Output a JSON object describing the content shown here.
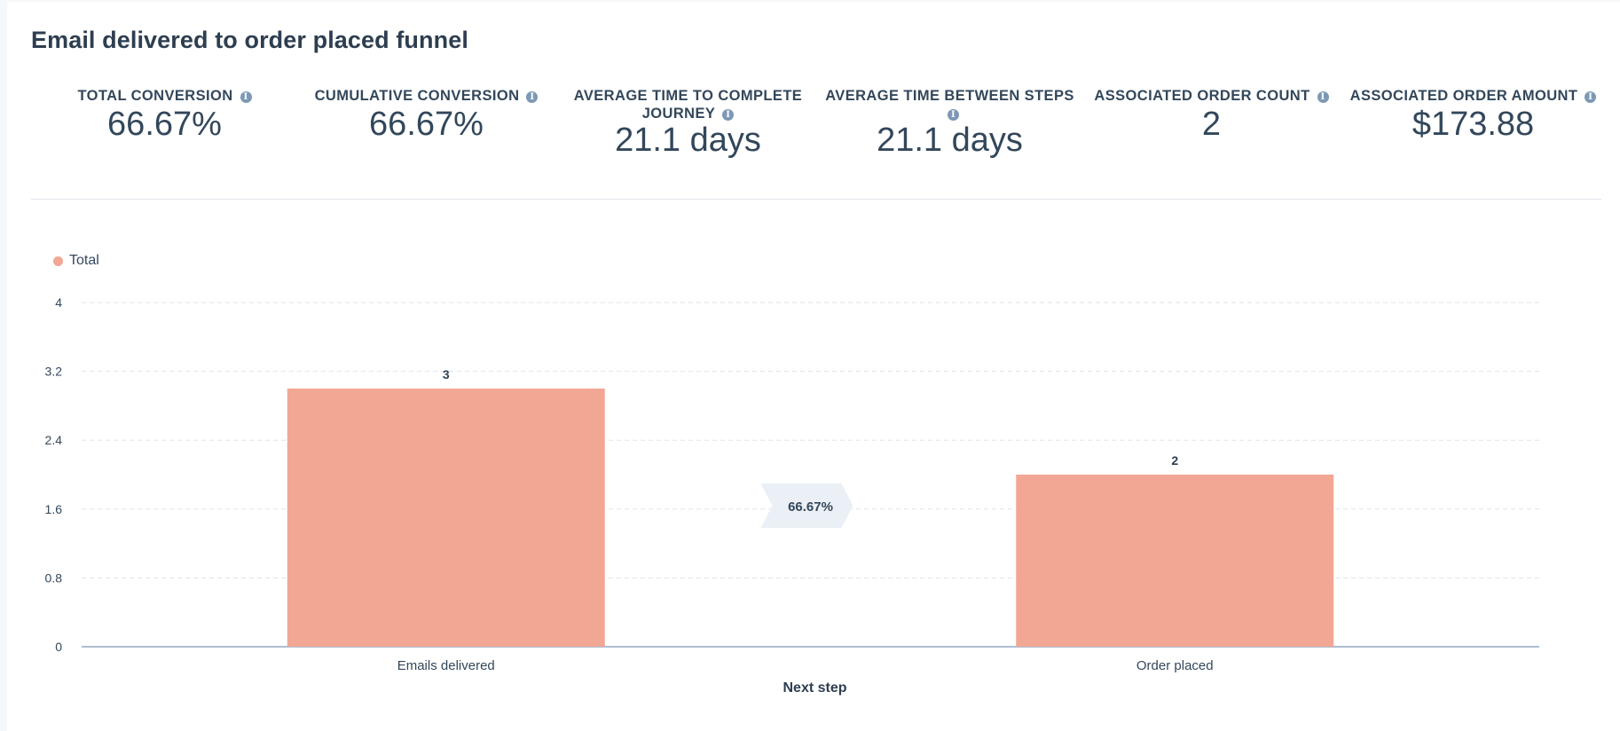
{
  "report": {
    "title": "Email delivered to order placed funnel"
  },
  "kpis": [
    {
      "label": "TOTAL CONVERSION",
      "value": "66.67%"
    },
    {
      "label": "CUMULATIVE CONVERSION",
      "value": "66.67%"
    },
    {
      "label": "AVERAGE TIME TO COMPLETE JOURNEY",
      "value": "21.1 days"
    },
    {
      "label": "AVERAGE TIME BETWEEN STEPS",
      "value": "21.1 days"
    },
    {
      "label": "ASSOCIATED ORDER COUNT",
      "value": "2"
    },
    {
      "label": "ASSOCIATED ORDER AMOUNT",
      "value": "$173.88"
    }
  ],
  "info_icon": "info-circle-icon",
  "colors": {
    "bar": "#f2a794",
    "axis": "#7c98b6",
    "grid": "#dfe3eb",
    "text": "#33475b",
    "conversion_tag": "#eaf0f6"
  },
  "chart_data": {
    "type": "bar",
    "title": "",
    "legend": [
      "Total"
    ],
    "categories": [
      "Emails delivered",
      "Order placed"
    ],
    "series": [
      {
        "name": "Total",
        "values": [
          3,
          2
        ]
      }
    ],
    "data_labels": [
      "3",
      "2"
    ],
    "xlabel": "Next step",
    "ylabel": "",
    "ylim": [
      0,
      4
    ],
    "yticks": [
      0,
      0.8,
      1.6,
      2.4,
      3.2,
      4
    ],
    "ytick_labels": [
      "0",
      "0.8",
      "1.6",
      "2.4",
      "3.2",
      "4"
    ],
    "grid": true,
    "conversion_labels": [
      "66.67%"
    ]
  }
}
